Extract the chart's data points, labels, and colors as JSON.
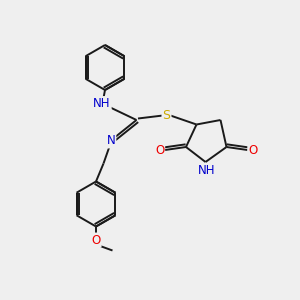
{
  "background_color": "#efefef",
  "bond_color": "#1a1a1a",
  "atom_colors": {
    "N": "#0000cc",
    "O": "#ee0000",
    "S": "#ccaa00",
    "C": "#1a1a1a"
  },
  "figsize": [
    3.0,
    3.0
  ],
  "dpi": 100
}
